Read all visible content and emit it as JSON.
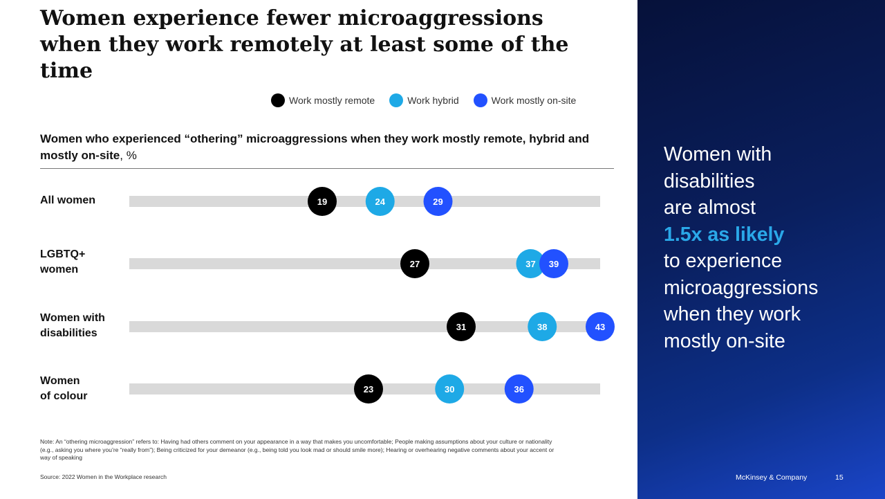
{
  "title": "Women experience fewer microaggressions\nwhen they work remotely at least some of the\ntime",
  "subtitle": {
    "text": "Women who experienced “othering” microaggressions when they work mostly remote, hybrid and mostly on-site",
    "unit": ", %"
  },
  "legend": [
    {
      "label": "Work mostly remote",
      "color": "#000000"
    },
    {
      "label": "Work hybrid",
      "color": "#1ea9e6"
    },
    {
      "label": "Work mostly on-site",
      "color": "#2251ff"
    }
  ],
  "chart_data": {
    "type": "dot",
    "categories": [
      "All women",
      "LGBTQ+\nwomen",
      "Women with\ndisabilities",
      "Women\nof colour"
    ],
    "series": [
      {
        "name": "Work mostly remote",
        "color": "#000000",
        "values": [
          19,
          27,
          31,
          23
        ]
      },
      {
        "name": "Work hybrid",
        "color": "#1ea9e6",
        "values": [
          24,
          37,
          38,
          30
        ]
      },
      {
        "name": "Work mostly on-site",
        "color": "#2251ff",
        "values": [
          29,
          39,
          43,
          36
        ]
      }
    ],
    "unit": "%"
  },
  "note": "Note: An “othering microaggression” refers to: Having had others comment on your appearance in a way that makes you uncomfortable; People making assumptions about your culture or nationality (e.g., asking you where you’re “really from”); Being criticized for your demeanor (e.g., being told you look mad or should smile more); Hearing or overhearing negative comments about your accent or way of speaking",
  "source": "Source: 2022 Women in the Workplace research",
  "callout": {
    "before": "Women with\ndisabilities\nare almost",
    "highlight": "1.5x as likely",
    "after": "to experience\nmicroaggressions\nwhen they work\nmostly on-site"
  },
  "footer": {
    "brand": "McKinsey & Company",
    "page": "15"
  }
}
